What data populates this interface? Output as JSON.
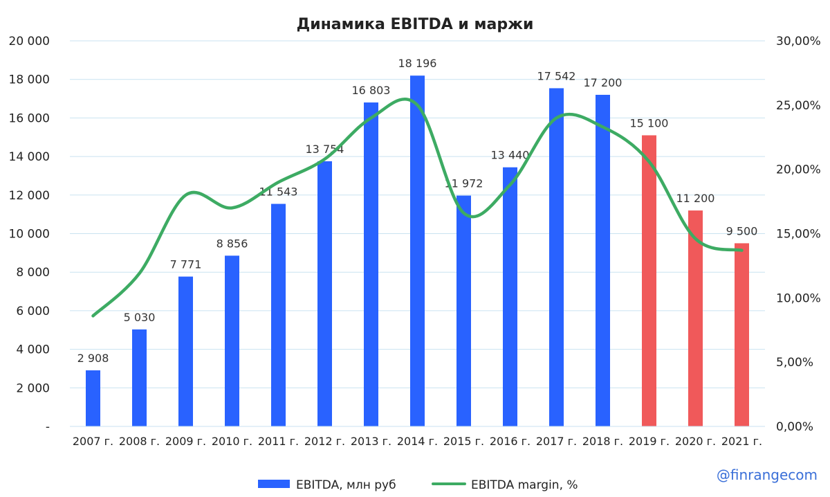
{
  "chart_data": {
    "type": "bar",
    "title": "Динамика EBITDA и маржи",
    "categories": [
      "2007 г.",
      "2008 г.",
      "2009 г.",
      "2010 г.",
      "2011 г.",
      "2012 г.",
      "2013 г.",
      "2014 г.",
      "2015 г.",
      "2016 г.",
      "2017 г.",
      "2018 г.",
      "2019 г.",
      "2020 г.",
      "2021 г."
    ],
    "series": [
      {
        "name": "EBITDA, млн руб",
        "type": "bar",
        "axis": "left",
        "values": [
          2908,
          5030,
          7771,
          8856,
          11543,
          13754,
          16803,
          18196,
          11972,
          13440,
          17542,
          17200,
          15100,
          11200,
          9500
        ],
        "labels": [
          "2 908",
          "5 030",
          "7 771",
          "8 856",
          "11 543",
          "13 754",
          "16 803",
          "18 196",
          "11 972",
          "13 440",
          "17 542",
          "17 200",
          "15 100",
          "11 200",
          "9 500"
        ],
        "color": "#2962ff",
        "forecast_color": "#f0595a",
        "forecast_from_index": 12
      },
      {
        "name": "EBITDA margin, %",
        "type": "line",
        "axis": "right",
        "smooth": true,
        "values": [
          8.6,
          11.9,
          18.0,
          17.0,
          19.0,
          20.8,
          24.0,
          25.0,
          16.6,
          18.8,
          24.0,
          23.3,
          20.6,
          14.6,
          13.7
        ],
        "color": "#3dab63"
      }
    ],
    "ylim": [
      0,
      20000
    ],
    "yticks": [
      "-",
      "2 000",
      "4 000",
      "6 000",
      "8 000",
      "10 000",
      "12 000",
      "14 000",
      "16 000",
      "18 000",
      "20 000"
    ],
    "y2lim": [
      0,
      30
    ],
    "y2ticks": [
      "0,00%",
      "5,00%",
      "10,00%",
      "15,00%",
      "20,00%",
      "25,00%",
      "30,00%"
    ],
    "grid": true,
    "legend_position": "bottom-center"
  },
  "watermark": "@finrangecom"
}
